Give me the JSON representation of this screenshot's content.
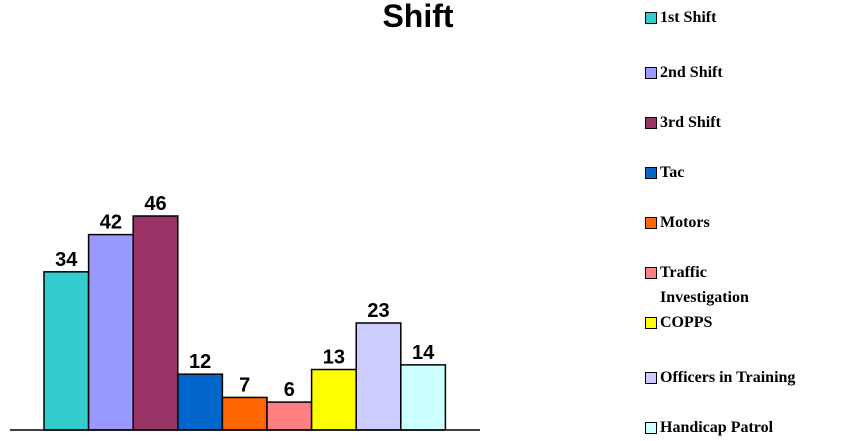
{
  "chart_data": {
    "type": "bar",
    "title": "Shift",
    "series": [
      {
        "name": "1st Shift",
        "color": "#33CCCC",
        "values": [
          34
        ]
      },
      {
        "name": "2nd Shift",
        "color": "#9999FF",
        "values": [
          42
        ]
      },
      {
        "name": "3rd Shift",
        "color": "#993366",
        "values": [
          46
        ]
      },
      {
        "name": "Tac",
        "color": "#0066CC",
        "values": [
          12
        ]
      },
      {
        "name": "Motors",
        "color": "#FF6600",
        "values": [
          7
        ]
      },
      {
        "name": "Traffic Investigation",
        "color": "#FF8080",
        "values": [
          6
        ]
      },
      {
        "name": "COPPS",
        "color": "#FFFF00",
        "values": [
          13
        ]
      },
      {
        "name": "Officers in Training",
        "color": "#CCCCFF",
        "values": [
          23
        ]
      },
      {
        "name": "Handicap Patrol",
        "color": "#CCFFFF",
        "values": [
          14
        ]
      }
    ],
    "legend": "right"
  }
}
